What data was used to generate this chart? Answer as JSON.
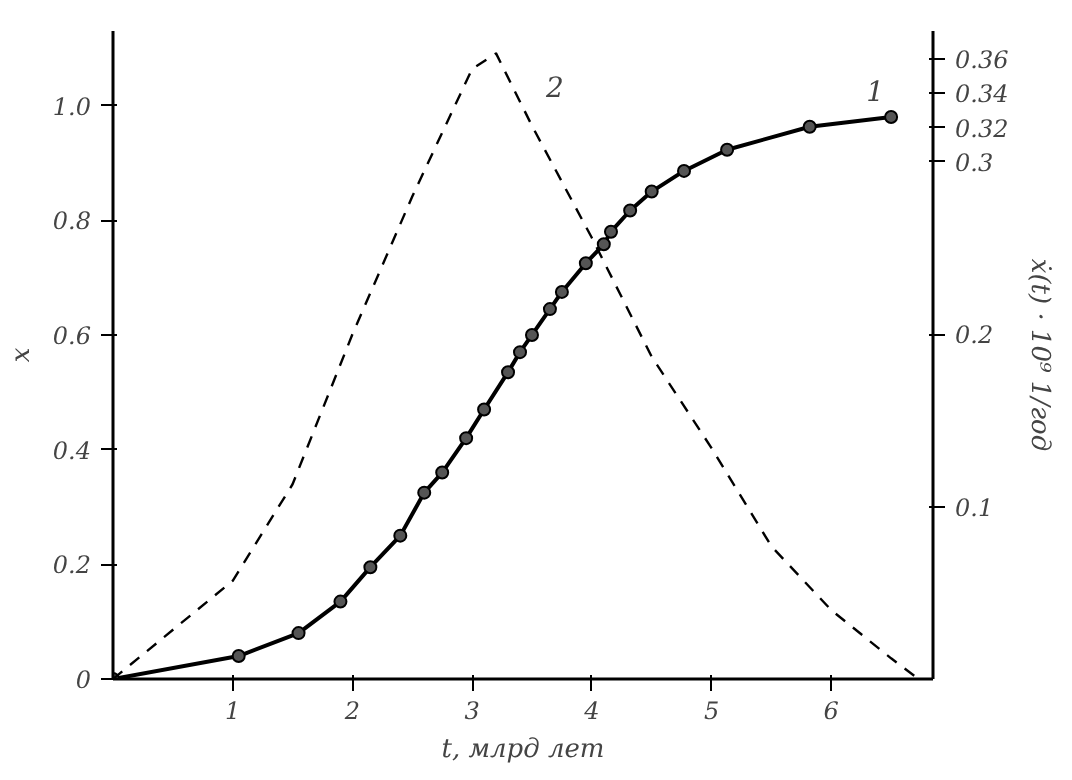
{
  "chart_data": {
    "type": "line",
    "xlabel": "t, млрд лет",
    "ylabel": "x",
    "y2label": "ẋ(t) · 10⁹ 1/год",
    "xlim": [
      0,
      6.85
    ],
    "xticks": [
      1,
      2,
      3,
      4,
      5,
      6
    ],
    "ylim": [
      0,
      1.13
    ],
    "yticks": [
      0,
      0.2,
      0.4,
      0.6,
      0.8,
      {
        "value": 1.0,
        "label": "1.0"
      }
    ],
    "y2lim": [
      0,
      0.376
    ],
    "y2ticks": [
      0.1,
      0.2,
      0.3,
      0.32,
      0.34,
      0.36
    ],
    "grid": false,
    "series": [
      {
        "name": "1",
        "color": "#000000",
        "marker": "circle",
        "line_style": "solid",
        "x": [
          0,
          1.05,
          1.55,
          1.9,
          2.15,
          2.4,
          2.6,
          2.75,
          2.95,
          3.1,
          3.3,
          3.4,
          3.5,
          3.65,
          3.75,
          3.95,
          4.1,
          4.16,
          4.32,
          4.5,
          4.77,
          5.13,
          5.82,
          6.5
        ],
        "values": [
          0,
          0.04,
          0.08,
          0.135,
          0.195,
          0.25,
          0.325,
          0.36,
          0.42,
          0.47,
          0.535,
          0.57,
          0.6,
          0.645,
          0.675,
          0.725,
          0.758,
          0.78,
          0.817,
          0.85,
          0.886,
          0.923,
          0.963,
          0.98
        ]
      },
      {
        "name": "2",
        "color": "#000000",
        "marker": "none",
        "line_style": "dashed",
        "axis": "y2",
        "x": [
          0,
          1,
          1.5,
          2,
          2.5,
          3,
          3.2,
          3.5,
          4,
          4.5,
          5,
          5.5,
          6,
          6.5,
          6.73
        ],
        "values": [
          0,
          0.057,
          0.113,
          0.2,
          0.28,
          0.354,
          0.363,
          0.321,
          0.256,
          0.187,
          0.134,
          0.077,
          0.04,
          0.012,
          0
        ]
      }
    ]
  }
}
